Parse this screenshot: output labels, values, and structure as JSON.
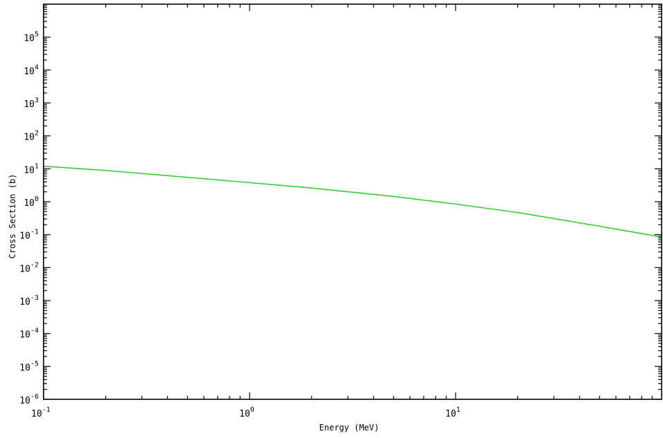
{
  "chart_data": {
    "type": "line",
    "title": "",
    "xlabel": "Energy (MeV)",
    "ylabel": "Cross Section (b)",
    "x_scale": "log",
    "y_scale": "log",
    "xlim": [
      0.1,
      100
    ],
    "ylim": [
      1e-06,
      1000000
    ],
    "grid": false,
    "x_ticks": [
      {
        "base": "10",
        "exp": "-1"
      },
      {
        "base": "10",
        "exp": "0"
      },
      {
        "base": "10",
        "exp": "1"
      }
    ],
    "y_ticks": [
      {
        "base": "10",
        "exp": "-6"
      },
      {
        "base": "10",
        "exp": "-5"
      },
      {
        "base": "10",
        "exp": "-4"
      },
      {
        "base": "10",
        "exp": "-3"
      },
      {
        "base": "10",
        "exp": "-2"
      },
      {
        "base": "10",
        "exp": "-1"
      },
      {
        "base": "10",
        "exp": "0"
      },
      {
        "base": "10",
        "exp": "1"
      },
      {
        "base": "10",
        "exp": "2"
      },
      {
        "base": "10",
        "exp": "3"
      },
      {
        "base": "10",
        "exp": "4"
      },
      {
        "base": "10",
        "exp": "5"
      }
    ],
    "series": [
      {
        "color": "#33cc33",
        "points": [
          [
            0.1,
            12.0
          ],
          [
            0.2,
            8.9
          ],
          [
            0.5,
            5.5
          ],
          [
            1.0,
            3.8
          ],
          [
            2.0,
            2.6
          ],
          [
            5.0,
            1.45
          ],
          [
            10.0,
            0.85
          ],
          [
            20.0,
            0.47
          ],
          [
            50.0,
            0.18
          ],
          [
            100.0,
            0.085
          ]
        ]
      }
    ]
  }
}
